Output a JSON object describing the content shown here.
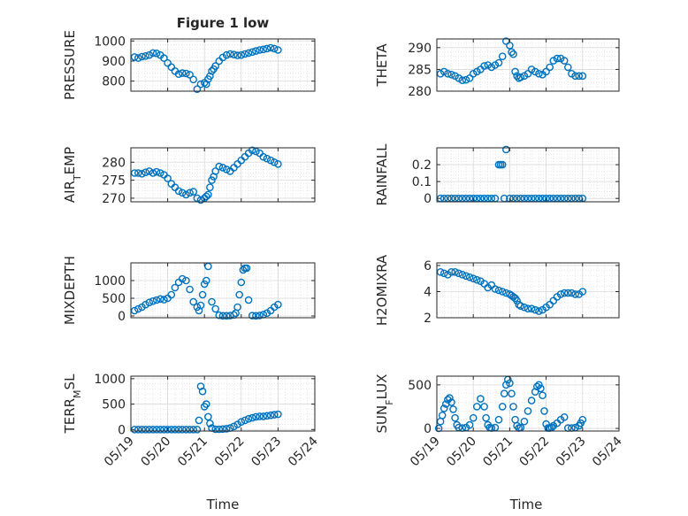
{
  "figure": {
    "title": "Figure 1 low",
    "x_label": "Time",
    "x_ticks": [
      "05/19",
      "05/20",
      "05/21",
      "05/22",
      "05/23",
      "05/24"
    ]
  },
  "colors": {
    "marker": "#0072BD",
    "axis": "#262626",
    "grid": "#d9d9d9",
    "background": "#ffffff"
  },
  "chart_data": [
    {
      "type": "scatter",
      "ylabel": "PRESSURE",
      "ylim": [
        750,
        1010
      ],
      "yticks": [
        800,
        900,
        1000
      ],
      "xlim": [
        0,
        5
      ],
      "x": [
        0.1,
        0.2,
        0.3,
        0.4,
        0.5,
        0.6,
        0.7,
        0.8,
        0.9,
        1.0,
        1.1,
        1.2,
        1.3,
        1.4,
        1.5,
        1.6,
        1.7,
        1.8,
        1.9,
        2.0,
        2.05,
        2.1,
        2.15,
        2.2,
        2.25,
        2.3,
        2.4,
        2.5,
        2.6,
        2.7,
        2.8,
        2.9,
        3.0,
        3.1,
        3.2,
        3.3,
        3.4,
        3.5,
        3.6,
        3.7,
        3.8,
        3.9,
        4.0
      ],
      "y": [
        920,
        915,
        922,
        925,
        930,
        940,
        938,
        930,
        915,
        890,
        870,
        850,
        835,
        840,
        838,
        832,
        808,
        760,
        785,
        792,
        785,
        810,
        825,
        850,
        860,
        875,
        900,
        918,
        930,
        935,
        932,
        928,
        930,
        935,
        940,
        945,
        950,
        955,
        958,
        962,
        966,
        962,
        955
      ]
    },
    {
      "type": "scatter",
      "ylabel": "THETA",
      "ylim": [
        280,
        292
      ],
      "yticks": [
        280,
        285,
        290
      ],
      "xlim": [
        0,
        5
      ],
      "x": [
        0.1,
        0.2,
        0.3,
        0.4,
        0.5,
        0.6,
        0.7,
        0.8,
        0.9,
        1.0,
        1.1,
        1.2,
        1.3,
        1.4,
        1.5,
        1.6,
        1.7,
        1.8,
        1.9,
        2.0,
        2.05,
        2.1,
        2.15,
        2.2,
        2.25,
        2.3,
        2.4,
        2.5,
        2.6,
        2.7,
        2.8,
        2.9,
        3.0,
        3.1,
        3.2,
        3.3,
        3.4,
        3.5,
        3.6,
        3.7,
        3.8,
        3.9,
        4.0
      ],
      "y": [
        284,
        284.5,
        284,
        283.8,
        283.5,
        283,
        282.5,
        282.6,
        283,
        284,
        284.5,
        285,
        285.8,
        286,
        285.5,
        286,
        286.5,
        288,
        291.5,
        290.5,
        289,
        288.5,
        284.5,
        283.5,
        283,
        283.2,
        283.5,
        284,
        285,
        284.5,
        284,
        283.8,
        284.5,
        285.5,
        287,
        287.5,
        287.5,
        287,
        285.5,
        284,
        283.5,
        283.5,
        283.5
      ]
    },
    {
      "type": "scatter",
      "ylabel": "AIR_TEMP",
      "ylim": [
        269,
        284
      ],
      "yticks": [
        270,
        275,
        280
      ],
      "xlim": [
        0,
        5
      ],
      "x": [
        0.1,
        0.2,
        0.3,
        0.4,
        0.5,
        0.6,
        0.7,
        0.8,
        0.9,
        1.0,
        1.1,
        1.2,
        1.3,
        1.4,
        1.5,
        1.6,
        1.7,
        1.8,
        1.9,
        2.0,
        2.05,
        2.1,
        2.15,
        2.2,
        2.25,
        2.3,
        2.4,
        2.5,
        2.6,
        2.7,
        2.8,
        2.9,
        3.0,
        3.1,
        3.2,
        3.3,
        3.4,
        3.5,
        3.6,
        3.7,
        3.8,
        3.9,
        4.0
      ],
      "y": [
        277,
        277,
        276.8,
        277.2,
        277.5,
        277,
        277.3,
        277,
        276.5,
        275.5,
        274,
        273,
        272,
        271.5,
        271,
        271.5,
        271.8,
        270,
        269.5,
        270,
        270.5,
        271,
        273,
        275,
        276,
        277.5,
        278.8,
        278.5,
        278,
        277.5,
        278.5,
        279.5,
        280.5,
        281.5,
        282.5,
        283.3,
        283,
        282.5,
        281.5,
        281,
        280.5,
        280,
        279.5
      ]
    },
    {
      "type": "scatter",
      "ylabel": "RAINFALL",
      "ylim": [
        -0.02,
        0.3
      ],
      "yticks": [
        0,
        0.1,
        0.2
      ],
      "ytick_labels": [
        "0",
        "0.1",
        "0.2"
      ],
      "xlim": [
        0,
        5
      ],
      "x": [
        0.1,
        0.2,
        0.3,
        0.4,
        0.5,
        0.6,
        0.7,
        0.8,
        0.9,
        1.0,
        1.1,
        1.2,
        1.3,
        1.4,
        1.5,
        1.6,
        1.7,
        1.75,
        1.8,
        1.85,
        1.9,
        2.0,
        2.1,
        2.2,
        2.3,
        2.4,
        2.5,
        2.6,
        2.7,
        2.8,
        2.9,
        3.0,
        3.1,
        3.2,
        3.3,
        3.4,
        3.5,
        3.6,
        3.7,
        3.8,
        3.9,
        4.0
      ],
      "y": [
        0,
        0,
        0,
        0,
        0,
        0,
        0,
        0,
        0,
        0,
        0,
        0,
        0,
        0,
        0,
        0,
        0.2,
        0.2,
        0.2,
        0,
        0.29,
        0,
        0,
        0,
        0,
        0,
        0,
        0,
        0,
        0,
        0,
        0,
        0,
        0,
        0,
        0,
        0,
        0,
        0,
        0,
        0,
        0
      ]
    },
    {
      "type": "scatter",
      "ylabel": "MIXDEPTH",
      "ylim": [
        -50,
        1500
      ],
      "yticks": [
        0,
        500,
        1000
      ],
      "xlim": [
        0,
        5
      ],
      "x": [
        0.1,
        0.2,
        0.3,
        0.4,
        0.5,
        0.6,
        0.7,
        0.8,
        0.9,
        1.0,
        1.1,
        1.2,
        1.3,
        1.4,
        1.5,
        1.6,
        1.7,
        1.8,
        1.85,
        1.9,
        1.95,
        2.0,
        2.05,
        2.1,
        2.2,
        2.3,
        2.4,
        2.5,
        2.6,
        2.7,
        2.8,
        2.85,
        2.9,
        2.95,
        3.0,
        3.05,
        3.1,
        3.15,
        3.2,
        3.3,
        3.4,
        3.5,
        3.6,
        3.7,
        3.8,
        3.9,
        4.0
      ],
      "y": [
        150,
        200,
        250,
        320,
        380,
        420,
        450,
        480,
        460,
        500,
        600,
        800,
        950,
        1050,
        1000,
        750,
        400,
        250,
        150,
        300,
        600,
        900,
        1000,
        1400,
        400,
        200,
        20,
        5,
        5,
        10,
        30,
        80,
        250,
        600,
        950,
        1300,
        1350,
        1350,
        450,
        10,
        5,
        15,
        40,
        80,
        150,
        250,
        320
      ]
    },
    {
      "type": "scatter",
      "ylabel": "H2OMIXRA",
      "ylim": [
        2,
        6.2
      ],
      "yticks": [
        2,
        4,
        6
      ],
      "xlim": [
        0,
        5
      ],
      "x": [
        0.1,
        0.2,
        0.3,
        0.4,
        0.5,
        0.6,
        0.7,
        0.8,
        0.9,
        1.0,
        1.1,
        1.2,
        1.3,
        1.4,
        1.5,
        1.6,
        1.7,
        1.8,
        1.9,
        2.0,
        2.05,
        2.1,
        2.15,
        2.2,
        2.25,
        2.3,
        2.4,
        2.5,
        2.6,
        2.7,
        2.8,
        2.9,
        3.0,
        3.1,
        3.2,
        3.3,
        3.4,
        3.5,
        3.6,
        3.7,
        3.8,
        3.9,
        4.0
      ],
      "y": [
        5.5,
        5.4,
        5.3,
        5.5,
        5.5,
        5.4,
        5.3,
        5.2,
        5.1,
        5.0,
        4.9,
        4.8,
        4.6,
        4.3,
        4.5,
        4.2,
        4.1,
        4.0,
        3.9,
        3.8,
        3.7,
        3.6,
        3.5,
        3.3,
        3.0,
        2.9,
        2.8,
        2.7,
        2.7,
        2.6,
        2.5,
        2.6,
        2.8,
        3.0,
        3.3,
        3.6,
        3.8,
        3.9,
        3.9,
        3.9,
        3.8,
        3.8,
        4.0
      ]
    },
    {
      "type": "scatter",
      "ylabel": "TERR_MSL",
      "ylim": [
        -30,
        1050
      ],
      "yticks": [
        0,
        500,
        1000
      ],
      "xlim": [
        0,
        5
      ],
      "x": [
        0.1,
        0.2,
        0.3,
        0.4,
        0.5,
        0.6,
        0.7,
        0.8,
        0.9,
        1.0,
        1.1,
        1.2,
        1.3,
        1.4,
        1.5,
        1.6,
        1.7,
        1.8,
        1.85,
        1.9,
        1.95,
        2.0,
        2.05,
        2.1,
        2.15,
        2.2,
        2.3,
        2.4,
        2.5,
        2.6,
        2.7,
        2.8,
        2.9,
        3.0,
        3.1,
        3.2,
        3.3,
        3.4,
        3.5,
        3.6,
        3.7,
        3.8,
        3.9,
        4.0
      ],
      "y": [
        0,
        0,
        0,
        0,
        0,
        0,
        0,
        0,
        0,
        0,
        0,
        0,
        0,
        0,
        0,
        0,
        0,
        0,
        180,
        850,
        750,
        450,
        500,
        250,
        120,
        30,
        5,
        5,
        8,
        15,
        30,
        60,
        100,
        150,
        180,
        210,
        230,
        250,
        260,
        260,
        270,
        280,
        290,
        300
      ]
    },
    {
      "type": "scatter",
      "ylabel": "SUN_FLUX",
      "ylim": [
        -30,
        600
      ],
      "yticks": [
        0,
        500
      ],
      "xlim": [
        0,
        5
      ],
      "x": [
        0.05,
        0.1,
        0.15,
        0.2,
        0.25,
        0.3,
        0.35,
        0.4,
        0.45,
        0.5,
        0.55,
        0.6,
        0.7,
        0.8,
        0.9,
        1.0,
        1.1,
        1.2,
        1.3,
        1.35,
        1.4,
        1.45,
        1.5,
        1.6,
        1.7,
        1.8,
        1.85,
        1.9,
        1.95,
        2.0,
        2.05,
        2.1,
        2.15,
        2.2,
        2.25,
        2.3,
        2.4,
        2.5,
        2.6,
        2.7,
        2.75,
        2.8,
        2.85,
        2.9,
        2.95,
        3.0,
        3.05,
        3.1,
        3.15,
        3.2,
        3.3,
        3.4,
        3.5,
        3.6,
        3.7,
        3.8,
        3.9,
        3.95,
        4.0
      ],
      "y": [
        0,
        80,
        150,
        230,
        280,
        330,
        350,
        300,
        220,
        120,
        40,
        10,
        5,
        10,
        40,
        120,
        250,
        340,
        250,
        120,
        40,
        10,
        5,
        10,
        100,
        250,
        400,
        500,
        560,
        520,
        400,
        250,
        100,
        30,
        5,
        10,
        80,
        200,
        320,
        420,
        480,
        500,
        460,
        380,
        200,
        50,
        5,
        5,
        10,
        30,
        60,
        100,
        130,
        5,
        5,
        10,
        30,
        60,
        100
      ]
    }
  ]
}
